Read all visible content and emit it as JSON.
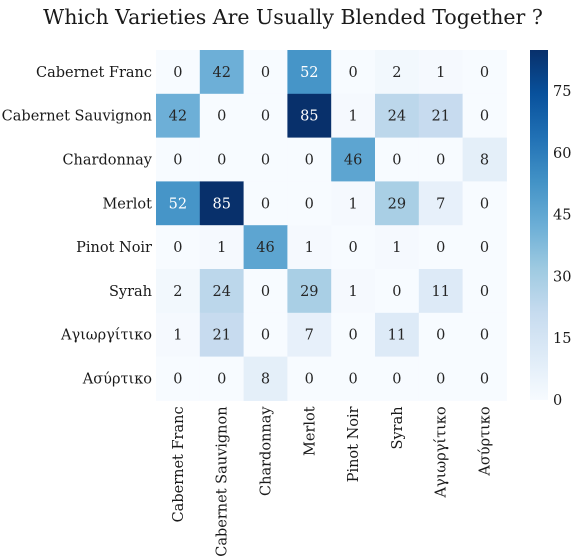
{
  "chart_data": {
    "type": "heatmap",
    "title": "Which Varieties Are Usually Blended Together ?",
    "row_labels": [
      "Cabernet Franc",
      "Cabernet Sauvignon",
      "Chardonnay",
      "Merlot",
      "Pinot Noir",
      "Syrah",
      "Αγιωργίτικο",
      "Ασύρτικο"
    ],
    "col_labels": [
      "Cabernet Franc",
      "Cabernet Sauvignon",
      "Chardonnay",
      "Merlot",
      "Pinot Noir",
      "Syrah",
      "Αγιωργίτικο",
      "Ασύρτικο"
    ],
    "values": [
      [
        0,
        42,
        0,
        52,
        0,
        2,
        1,
        0
      ],
      [
        42,
        0,
        0,
        85,
        1,
        24,
        21,
        0
      ],
      [
        0,
        0,
        0,
        0,
        46,
        0,
        0,
        8
      ],
      [
        52,
        85,
        0,
        0,
        1,
        29,
        7,
        0
      ],
      [
        0,
        1,
        46,
        1,
        0,
        1,
        0,
        0
      ],
      [
        2,
        24,
        0,
        29,
        1,
        0,
        11,
        0
      ],
      [
        1,
        21,
        0,
        7,
        0,
        11,
        0,
        0
      ],
      [
        0,
        0,
        8,
        0,
        0,
        0,
        0,
        0
      ]
    ],
    "colorbar": {
      "range": [
        0,
        85
      ],
      "ticks": [
        0,
        15,
        30,
        45,
        60,
        75
      ],
      "colormap": "Blues"
    }
  }
}
